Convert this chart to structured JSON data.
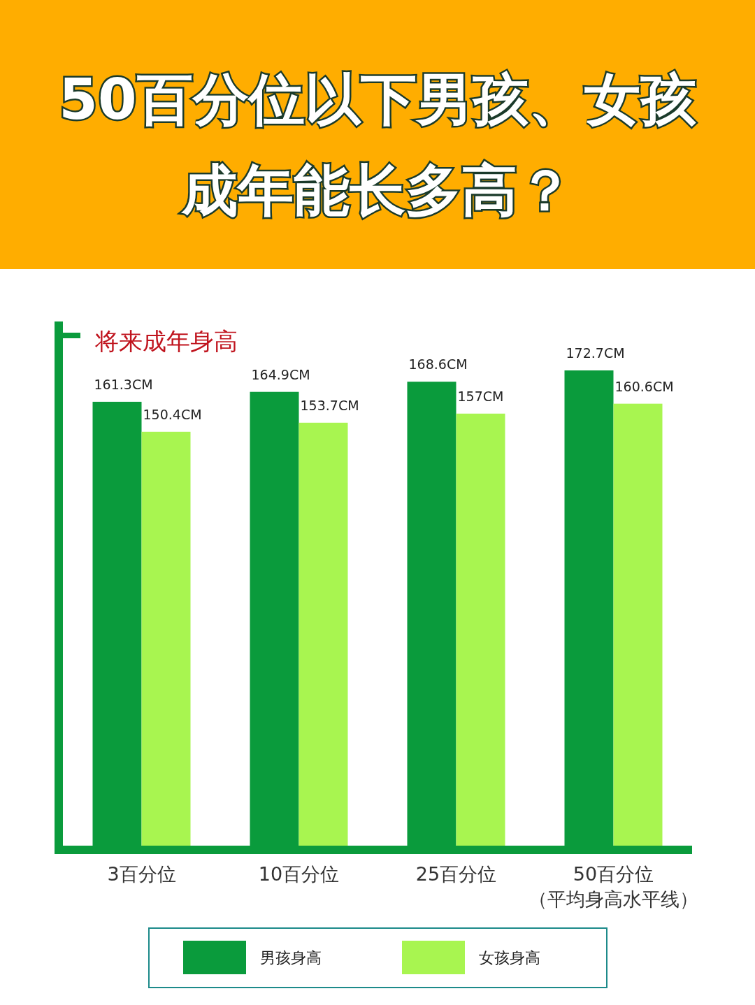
{
  "chart_data": {
    "type": "bar",
    "title": "50百分位以下男孩、女孩成年能长多高？",
    "ylabel": "将来成年身高",
    "categories": [
      "3百分位",
      "10百分位",
      "25百分位",
      "50百分位（平均身高水平线）"
    ],
    "series": [
      {
        "name": "男孩身高",
        "color": "#0a9b3c",
        "values": [
          161.3,
          164.9,
          168.6,
          172.7
        ],
        "value_labels": [
          "161.3CM",
          "164.9CM",
          "168.6CM",
          "172.7CM"
        ]
      },
      {
        "name": "女孩身高",
        "color": "#a8f550",
        "values": [
          150.4,
          153.7,
          157,
          160.6
        ],
        "value_labels": [
          "150.4CM",
          "153.7CM",
          "157CM",
          "160.6CM"
        ]
      }
    ],
    "legend": "bottom"
  }
}
